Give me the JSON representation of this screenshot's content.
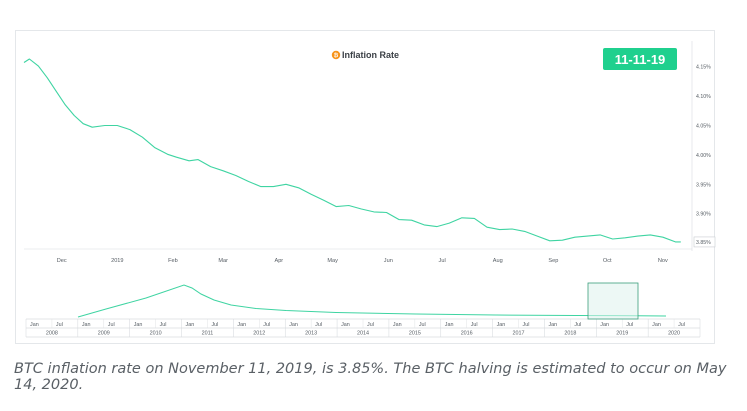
{
  "chart_data": {
    "type": "line",
    "title": "Inflation Rate",
    "date_badge": "11-11-19",
    "x_tick_labels": [
      "Dec",
      "2019",
      "Feb",
      "Mar",
      "Apr",
      "May",
      "Jun",
      "Jul",
      "Aug",
      "Sep",
      "Oct",
      "Nov"
    ],
    "y_tick_labels": [
      "4.15%",
      "4.10%",
      "4.05%",
      "4.00%",
      "3.95%",
      "3.90%",
      "3.85%"
    ],
    "y_current_label": "3.85%",
    "ylim": [
      3.84,
      4.18
    ],
    "x": [
      "2018-11-10",
      "2018-11-13",
      "2018-11-18",
      "2018-11-23",
      "2018-11-28",
      "2018-12-03",
      "2018-12-08",
      "2018-12-13",
      "2018-12-18",
      "2018-12-25",
      "2019-01-01",
      "2019-01-08",
      "2019-01-15",
      "2019-01-22",
      "2019-01-29",
      "2019-02-03",
      "2019-02-10",
      "2019-02-15",
      "2019-02-22",
      "2019-03-01",
      "2019-03-08",
      "2019-03-15",
      "2019-03-22",
      "2019-03-29",
      "2019-04-05",
      "2019-04-12",
      "2019-04-19",
      "2019-04-26",
      "2019-05-03",
      "2019-05-10",
      "2019-05-17",
      "2019-05-24",
      "2019-05-31",
      "2019-06-07",
      "2019-06-14",
      "2019-06-21",
      "2019-06-28",
      "2019-07-05",
      "2019-07-12",
      "2019-07-19",
      "2019-07-26",
      "2019-08-02",
      "2019-08-09",
      "2019-08-16",
      "2019-08-23",
      "2019-08-30",
      "2019-09-06",
      "2019-09-13",
      "2019-09-20",
      "2019-09-27",
      "2019-10-04",
      "2019-10-11",
      "2019-10-18",
      "2019-10-25",
      "2019-11-01",
      "2019-11-08",
      "2019-11-11"
    ],
    "values": [
      4.157,
      4.163,
      4.151,
      4.131,
      4.108,
      4.085,
      4.067,
      4.053,
      4.047,
      4.05,
      4.05,
      4.043,
      4.03,
      4.012,
      4.001,
      3.996,
      3.99,
      3.992,
      3.98,
      3.973,
      3.965,
      3.955,
      3.946,
      3.946,
      3.95,
      3.944,
      3.933,
      3.923,
      3.912,
      3.914,
      3.908,
      3.903,
      3.902,
      3.89,
      3.889,
      3.881,
      3.878,
      3.884,
      3.893,
      3.892,
      3.877,
      3.873,
      3.874,
      3.87,
      3.862,
      3.854,
      3.855,
      3.86,
      3.862,
      3.864,
      3.857,
      3.859,
      3.862,
      3.864,
      3.86,
      3.852,
      3.852
    ],
    "navigator": {
      "year_labels": [
        "2008",
        "2009",
        "2010",
        "2011",
        "2012",
        "2013",
        "2014",
        "2015",
        "2016",
        "2017",
        "2018",
        "2019",
        "2020"
      ],
      "half_labels": [
        "Jan",
        "Jul"
      ]
    },
    "legend": "none",
    "grid": false
  },
  "caption": "BTC inflation rate on November 11, 2019, is 3.85%. The BTC halving is estimated to occur on May 14, 2020.",
  "colors": {
    "line": "#3fd4a2",
    "badge": "#1fd08e",
    "title_icon": "#f7931a"
  },
  "icons": {
    "title_icon": "bitcoin-coin-icon"
  }
}
